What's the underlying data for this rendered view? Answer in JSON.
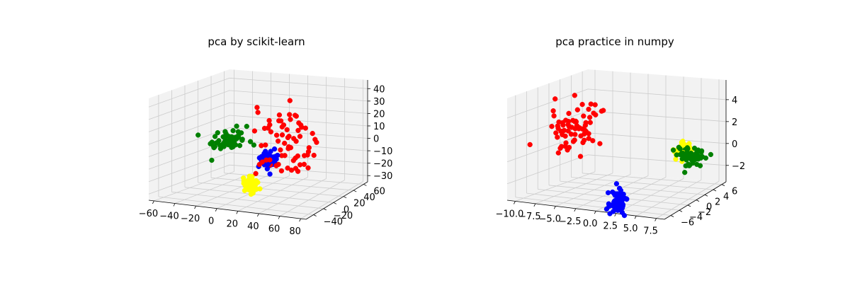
{
  "colors": {
    "red": "#ff0000",
    "green": "#008000",
    "blue": "#0000ff",
    "yellow": "#ffff00",
    "pane": "#f2f2f2",
    "grid": "#cccccc"
  },
  "chart_data": [
    {
      "type": "scatter",
      "title": "pca by scikit-learn",
      "grid": true,
      "x_ticks": [
        "−60",
        "−40",
        "−20",
        "0",
        "20",
        "40",
        "60",
        "80"
      ],
      "y_ticks": [
        "−40",
        "−20",
        "0",
        "20",
        "40",
        "60"
      ],
      "z_ticks": [
        "−30",
        "−20",
        "−10",
        "0",
        "10",
        "20",
        "30",
        "40"
      ],
      "xlim": [
        -65,
        85
      ],
      "ylim": [
        -55,
        68
      ],
      "zlim": [
        -35,
        47
      ],
      "series": [
        {
          "color": "red",
          "center": [
            30,
            0,
            10
          ],
          "spread": [
            14,
            14,
            14
          ],
          "count": 70
        },
        {
          "color": "blue",
          "center": [
            18,
            -5,
            -3
          ],
          "spread": [
            3.5,
            3.5,
            3.5
          ],
          "count": 60
        },
        {
          "color": "green",
          "center": [
            -38,
            25,
            0
          ],
          "spread": [
            6,
            10,
            4
          ],
          "count": 60
        },
        {
          "color": "yellow",
          "center": [
            10,
            -20,
            -22
          ],
          "spread": [
            3,
            3,
            3
          ],
          "count": 60
        }
      ]
    },
    {
      "type": "scatter",
      "title": "pca practice in numpy",
      "grid": true,
      "x_ticks": [
        "−10.0",
        "−7.5",
        "−5.0",
        "−2.5",
        "0.0",
        "2.5",
        "5.0",
        "7.5"
      ],
      "y_ticks": [
        "−6",
        "−4",
        "−2",
        "0",
        "2",
        "4",
        "6"
      ],
      "z_ticks": [
        "−2",
        "0",
        "2",
        "4"
      ],
      "xlim": [
        -11,
        8.5
      ],
      "ylim": [
        -7.5,
        7
      ],
      "zlim": [
        -3.5,
        5.8
      ],
      "series": [
        {
          "color": "red",
          "center": [
            -8,
            0,
            2
          ],
          "spread": [
            1.2,
            1.5,
            1.2
          ],
          "count": 70
        },
        {
          "color": "blue",
          "center": [
            1,
            -5,
            -3
          ],
          "spread": [
            0.5,
            0.4,
            0.5
          ],
          "count": 60
        },
        {
          "color": "green",
          "center": [
            6,
            1,
            0.4
          ],
          "spread": [
            0.9,
            0.9,
            0.5
          ],
          "count": 60
        },
        {
          "color": "yellow",
          "center": [
            4,
            2.5,
            0.5
          ],
          "spread": [
            0.4,
            0.4,
            0.4
          ],
          "count": 60
        }
      ]
    }
  ]
}
